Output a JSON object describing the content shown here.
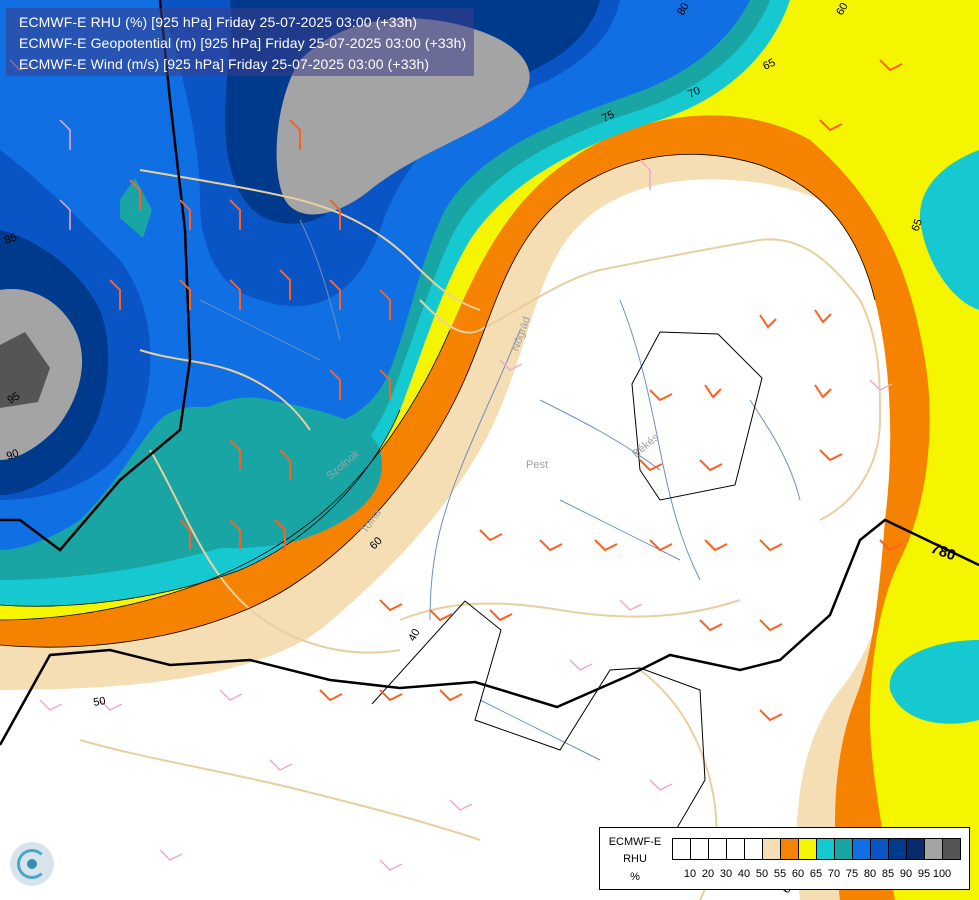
{
  "header": {
    "line1": "ECMWF-E RHU (%) [925 hPa] Friday 25-07-2025 03:00 (+33h)",
    "line2": "ECMWF-E Geopotential (m) [925 hPa] Friday 25-07-2025 03:00 (+33h)",
    "line3": "ECMWF-E Wind (m/s) [925 hPa] Friday 25-07-2025 03:00 (+33h)"
  },
  "legend": {
    "title_line1": "ECMWF-E",
    "title_line2": "RHU",
    "title_line3": "%",
    "levels": [
      "10",
      "20",
      "30",
      "40",
      "50",
      "55",
      "60",
      "65",
      "70",
      "75",
      "80",
      "85",
      "90",
      "95",
      "100"
    ],
    "colors": [
      "#ffffff",
      "#ffffff",
      "#ffffff",
      "#ffffff",
      "#ffffff",
      "#f5deb3",
      "#f58200",
      "#f5f500",
      "#16c9d1",
      "#1aa5a5",
      "#0f6fe3",
      "#0a55c5",
      "#003a8c",
      "#0a2a6e",
      "#a4a4a4",
      "#555555"
    ]
  },
  "map": {
    "contour_labels": [
      "80",
      "60",
      "75",
      "70",
      "65",
      "85",
      "95",
      "90",
      "65",
      "60",
      "780",
      "40",
      "50",
      "60"
    ],
    "geopotential_label": "780",
    "city_labels": [
      "Pest",
      "Békés",
      "Tolna",
      "Nógrád",
      "Szolnok"
    ]
  },
  "icons": {
    "logo": "ecmwf-logo-icon",
    "wind_barb": "wind-barb-icon"
  }
}
